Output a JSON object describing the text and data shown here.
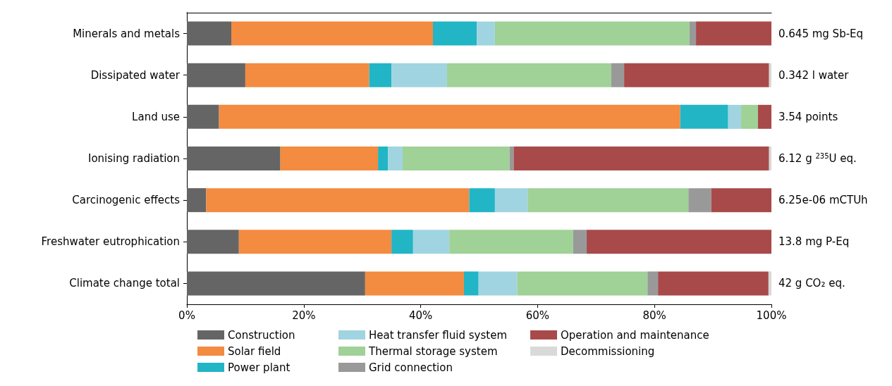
{
  "chart_data": {
    "type": "bar",
    "orientation": "horizontal",
    "stacked": true,
    "categories": [
      "Minerals and metals",
      "Dissipated water",
      "Land use",
      "Ionising radiation",
      "Carcinogenic effects",
      "Freshwater eutrophication",
      "Climate change total"
    ],
    "series": [
      {
        "name": "Construction",
        "color": "#656565",
        "values": [
          7.6,
          10.0,
          5.5,
          16.0,
          3.3,
          8.9,
          30.5
        ]
      },
      {
        "name": "Solar field",
        "color": "#f38b40",
        "values": [
          34.5,
          21.2,
          78.9,
          16.7,
          45.0,
          26.1,
          16.9
        ]
      },
      {
        "name": "Power plant",
        "color": "#22b5c5",
        "values": [
          7.5,
          3.8,
          8.2,
          1.7,
          4.4,
          3.7,
          2.5
        ]
      },
      {
        "name": "Heat transfer fluid system",
        "color": "#a0d4e0",
        "values": [
          3.1,
          9.5,
          2.2,
          2.5,
          5.6,
          6.2,
          6.6
        ]
      },
      {
        "name": "Thermal storage system",
        "color": "#a0d197",
        "values": [
          33.3,
          28.1,
          2.9,
          18.3,
          27.5,
          21.2,
          22.3
        ]
      },
      {
        "name": "Grid connection",
        "color": "#999999",
        "values": [
          1.1,
          2.2,
          0,
          0.7,
          3.9,
          2.3,
          1.8
        ]
      },
      {
        "name": "Operation and maintenance",
        "color": "#a84a4a",
        "values": [
          12.9,
          24.8,
          2.3,
          43.7,
          10.3,
          31.6,
          18.9
        ]
      },
      {
        "name": "Decommissioning",
        "color": "#d9d9d9",
        "values": [
          0,
          0.4,
          0,
          0.4,
          0,
          0,
          0.5
        ]
      }
    ],
    "xlim": [
      0,
      100
    ],
    "xticks": [
      {
        "value": 0,
        "label": "0%"
      },
      {
        "value": 20,
        "label": "20%"
      },
      {
        "value": 40,
        "label": "40%"
      },
      {
        "value": 60,
        "label": "60%"
      },
      {
        "value": 80,
        "label": "80%"
      },
      {
        "value": 100,
        "label": "100%"
      }
    ],
    "annotations": [
      "0.645 mg Sb-Eq",
      "0.342 l water",
      "3.54 points",
      "6.12 g $^{235}$U eq.",
      "6.25e-06 mCTUh",
      "13.8 mg P-Eq",
      "42 g CO₂ eq."
    ],
    "grid": false,
    "legend": "bottom"
  }
}
